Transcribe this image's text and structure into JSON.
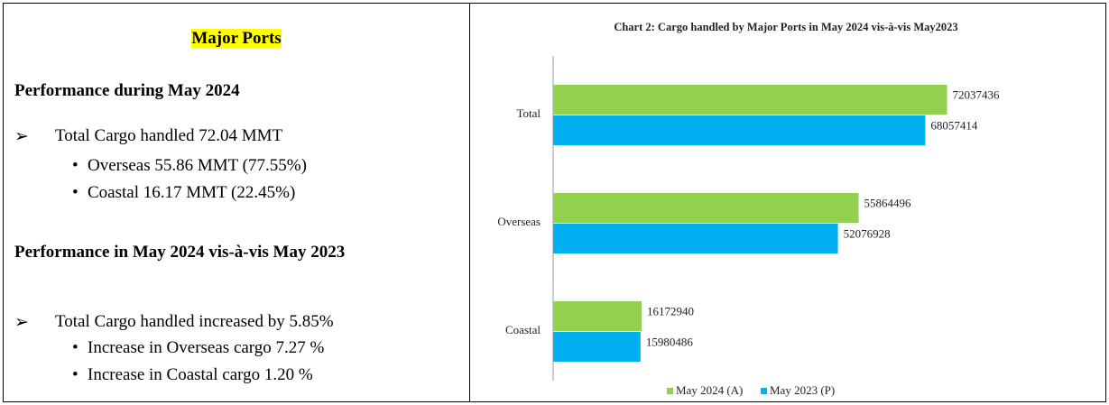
{
  "left": {
    "heading": "Major Ports",
    "section1": {
      "title": "Performance during May 2024",
      "item": "Total Cargo handled 72.04 MMT",
      "subitems": [
        "Overseas 55.86 MMT (77.55%)",
        "Coastal 16.17 MMT (22.45%)"
      ]
    },
    "section2": {
      "title": "Performance in May 2024 vis-à-vis May 2023",
      "item": "Total Cargo handled increased by 5.85%",
      "subitems": [
        "Increase in Overseas cargo 7.27 %",
        "Increase in Coastal cargo 1.20 %"
      ]
    }
  },
  "chart_data": {
    "type": "hbar",
    "title": "Chart 2: Cargo handled by Major Ports in May 2024 vis-à-vis May2023",
    "categories": [
      "Total",
      "Overseas",
      "Coastal"
    ],
    "series": [
      {
        "name": "May 2024 (A)",
        "color": "#92d050",
        "values": [
          72037436,
          55864496,
          16172940
        ]
      },
      {
        "name": "May 2023 (P)",
        "color": "#00b0f0",
        "values": [
          68057414,
          52076928,
          15980486
        ]
      }
    ],
    "xlim": [
      0,
      100000000
    ]
  }
}
